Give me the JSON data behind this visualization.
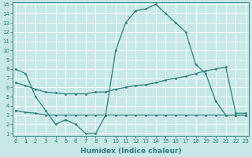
{
  "xlabel": "Humidex (Indice chaleur)",
  "x": [
    0,
    1,
    2,
    3,
    4,
    5,
    6,
    7,
    8,
    9,
    10,
    11,
    12,
    13,
    14,
    15,
    16,
    17,
    18,
    19,
    20,
    21,
    22,
    23
  ],
  "line1": [
    8.0,
    7.5,
    5.0,
    3.5,
    2.0,
    2.5,
    2.0,
    1.0,
    1.0,
    3.0,
    10.0,
    13.0,
    14.3,
    14.5,
    15.0,
    14.0,
    13.0,
    12.0,
    8.5,
    7.5,
    4.5,
    3.0,
    3.0,
    3.0
  ],
  "line2": [
    6.5,
    6.2,
    5.8,
    5.5,
    5.4,
    5.3,
    5.3,
    5.3,
    5.5,
    5.5,
    5.8,
    6.0,
    6.2,
    6.3,
    6.5,
    6.8,
    7.0,
    7.2,
    7.5,
    7.8,
    8.0,
    8.2,
    3.2,
    3.2
  ],
  "line3": [
    3.5,
    3.3,
    3.2,
    3.0,
    3.0,
    3.0,
    3.0,
    3.0,
    3.0,
    3.0,
    3.0,
    3.0,
    3.0,
    3.0,
    3.0,
    3.0,
    3.0,
    3.0,
    3.0,
    3.0,
    3.0,
    3.0,
    3.0,
    3.0
  ],
  "line_color": "#2e7d7d",
  "bg_color": "#c8e8e8",
  "grid_color": "#ffffff",
  "ylim_min": 1,
  "ylim_max": 15,
  "xlim_min": 0,
  "xlim_max": 23,
  "yticks": [
    1,
    2,
    3,
    4,
    5,
    6,
    7,
    8,
    9,
    10,
    11,
    12,
    13,
    14,
    15
  ],
  "xticks": [
    0,
    1,
    2,
    3,
    4,
    5,
    6,
    7,
    8,
    9,
    10,
    11,
    12,
    13,
    14,
    15,
    16,
    17,
    18,
    19,
    20,
    21,
    22,
    23
  ],
  "tick_fontsize": 5.0,
  "xlabel_fontsize": 6.5
}
